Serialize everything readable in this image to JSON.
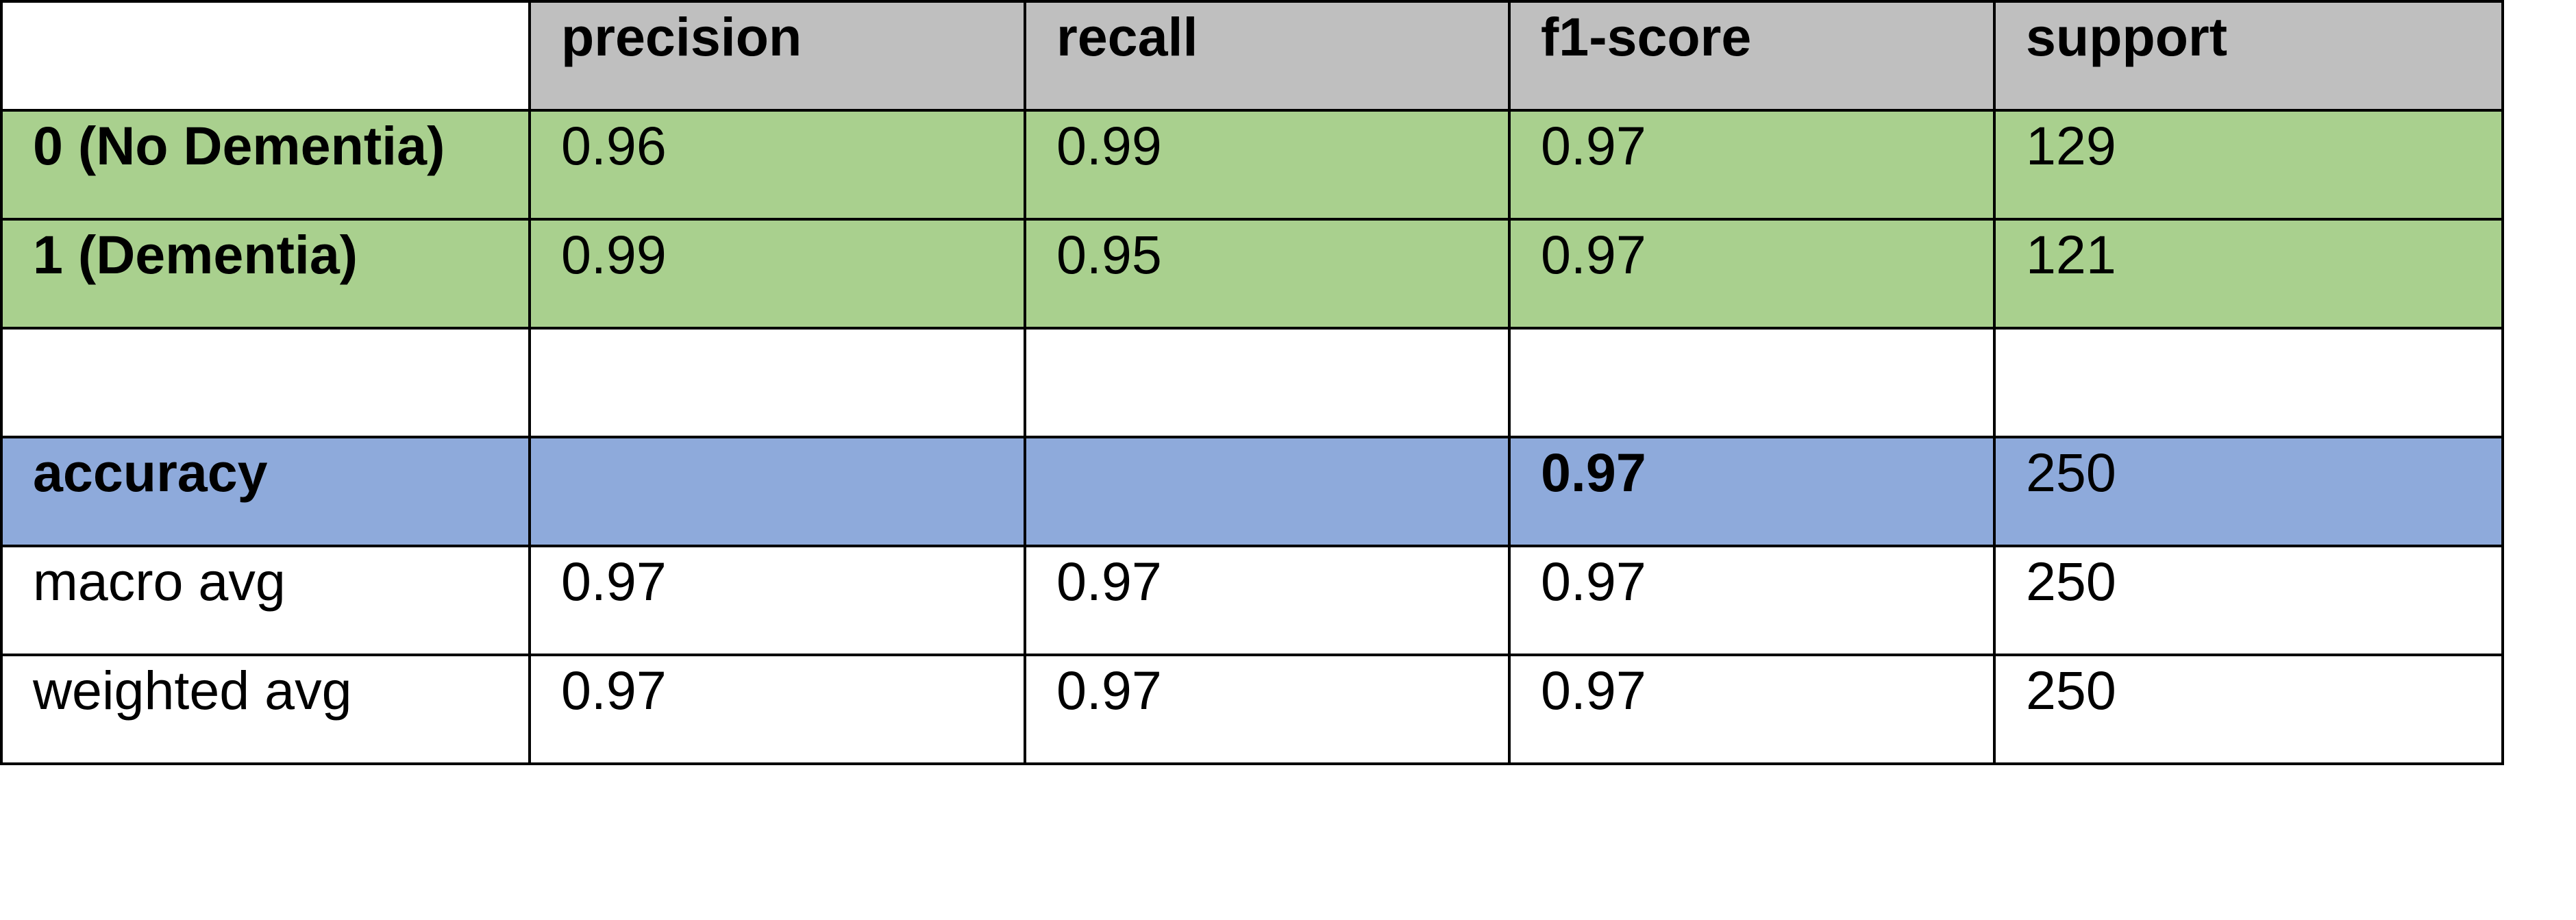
{
  "table": {
    "headers": [
      "",
      "precision",
      "recall",
      "f1-score",
      "support"
    ],
    "rows": [
      {
        "label": "0 (No Dementia)",
        "precision": "0.96",
        "recall": "0.99",
        "f1": "0.97",
        "support": "129"
      },
      {
        "label": "1 (Dementia)",
        "precision": "0.99",
        "recall": "0.95",
        "f1": "0.97",
        "support": "121"
      },
      {
        "label": "",
        "precision": "",
        "recall": "",
        "f1": "",
        "support": ""
      },
      {
        "label": "accuracy",
        "precision": "",
        "recall": "",
        "f1": "0.97",
        "support": "250"
      },
      {
        "label": "macro avg",
        "precision": "0.97",
        "recall": "0.97",
        "f1": "0.97",
        "support": "250"
      },
      {
        "label": "weighted avg",
        "precision": "0.97",
        "recall": "0.97",
        "f1": "0.97",
        "support": "250"
      }
    ]
  },
  "colors": {
    "header_fill": "#bfbfbf",
    "class_rows_fill": "#a9d08e",
    "accuracy_row_fill": "#8eaadb",
    "plain_fill": "#ffffff",
    "border": "#000000"
  }
}
